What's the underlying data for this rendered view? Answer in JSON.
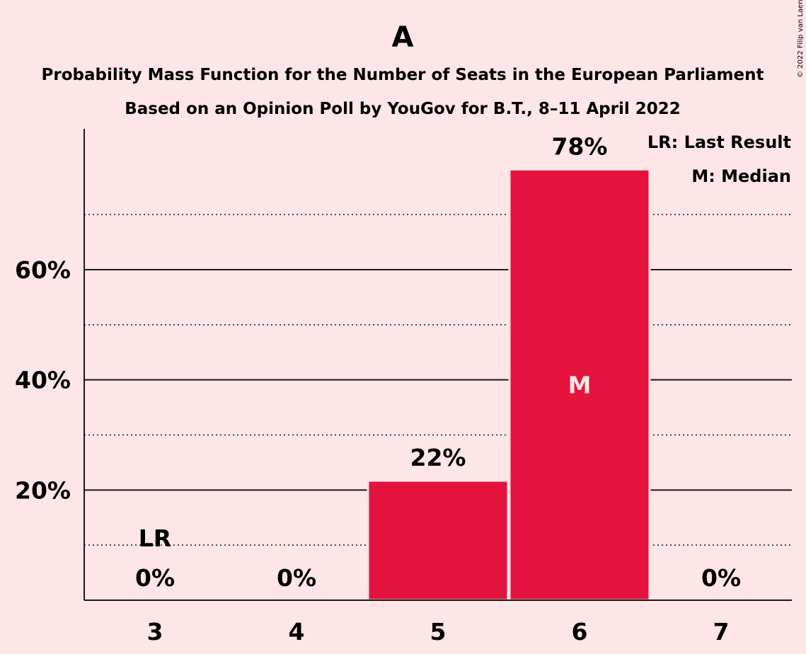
{
  "copyright": "© 2022 Filip van Laenen",
  "chart_data": {
    "type": "bar",
    "title": "A",
    "subtitle": "Probability Mass Function for the Number of Seats in the European Parliament",
    "subtitle2": "Based on an Opinion Poll by YouGov for B.T., 8–11 April 2022",
    "categories": [
      "3",
      "4",
      "5",
      "6",
      "7"
    ],
    "values": [
      0,
      0,
      21.7,
      78.2,
      0
    ],
    "value_labels": [
      "0%",
      "0%",
      "22%",
      "78%",
      "0%"
    ],
    "ylim": [
      0,
      85
    ],
    "yticks": [
      20,
      40,
      60
    ],
    "ytick_labels": [
      "20%",
      "40%",
      "60%"
    ],
    "minor_gridlines": [
      10,
      30,
      50,
      70
    ],
    "bar_color": "#e3133e",
    "background": "#fde5e8",
    "last_result": {
      "category": "3",
      "label": "LR"
    },
    "median": {
      "category": "6",
      "label": "M"
    },
    "legend": [
      "LR: Last Result",
      "M: Median"
    ],
    "legend_position": "top-right"
  }
}
